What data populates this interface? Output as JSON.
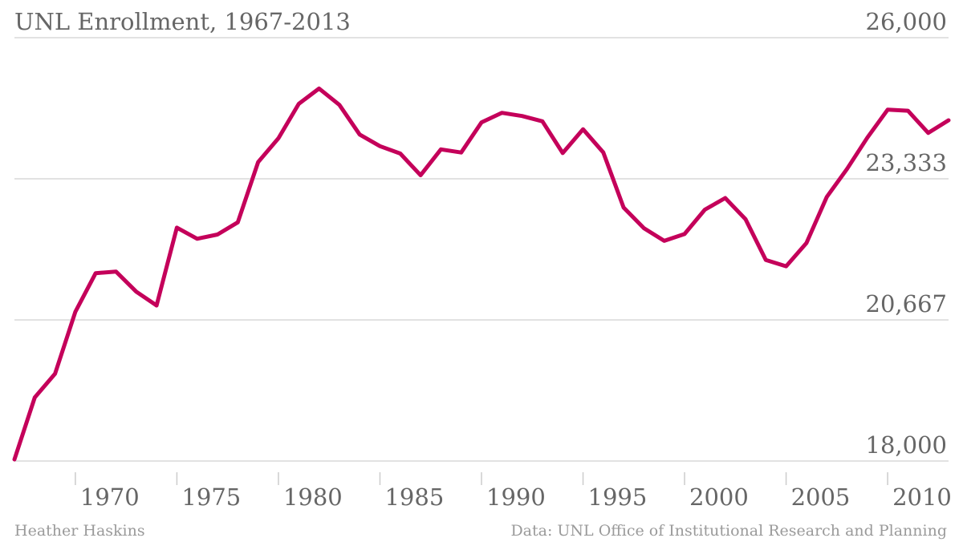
{
  "chart_data": {
    "type": "line",
    "title": "UNL Enrollment, 1967-2013",
    "xlabel": "",
    "ylabel": "",
    "xlim": [
      1967,
      2013
    ],
    "ylim": [
      18000,
      26000
    ],
    "y_ticks": [
      {
        "value": 18000,
        "label": "18,000"
      },
      {
        "value": 20667,
        "label": "20,667"
      },
      {
        "value": 23333,
        "label": "23,333"
      },
      {
        "value": 26000,
        "label": "26,000"
      }
    ],
    "x_ticks": [
      {
        "value": 1970,
        "label": "1970"
      },
      {
        "value": 1975,
        "label": "1975"
      },
      {
        "value": 1980,
        "label": "1980"
      },
      {
        "value": 1985,
        "label": "1985"
      },
      {
        "value": 1990,
        "label": "1990"
      },
      {
        "value": 1995,
        "label": "1995"
      },
      {
        "value": 2000,
        "label": "2000"
      },
      {
        "value": 2005,
        "label": "2005"
      },
      {
        "value": 2010,
        "label": "2010"
      }
    ],
    "grid": "horizontal",
    "y_axis_position": "right",
    "series": [
      {
        "color": "#c4005a",
        "x": [
          1967,
          1968,
          1969,
          1970,
          1971,
          1972,
          1973,
          1974,
          1975,
          1976,
          1977,
          1978,
          1979,
          1980,
          1981,
          1982,
          1983,
          1984,
          1985,
          1986,
          1987,
          1988,
          1989,
          1990,
          1991,
          1992,
          1993,
          1994,
          1995,
          1996,
          1997,
          1998,
          1999,
          2000,
          2001,
          2002,
          2003,
          2004,
          2005,
          2006,
          2007,
          2008,
          2009,
          2010,
          2011,
          2012,
          2013
        ],
        "values": [
          18030,
          19200,
          19650,
          20820,
          21550,
          21580,
          21200,
          20940,
          22410,
          22200,
          22280,
          22510,
          23650,
          24100,
          24750,
          25040,
          24730,
          24170,
          23950,
          23810,
          23400,
          23890,
          23830,
          24400,
          24580,
          24520,
          24420,
          23820,
          24270,
          23830,
          22790,
          22400,
          22160,
          22290,
          22750,
          22970,
          22570,
          21800,
          21680,
          22120,
          22990,
          23520,
          24110,
          24640,
          24620,
          24200,
          24440
        ]
      }
    ]
  },
  "footer": {
    "author": "Heather Haskins",
    "source": "Data: UNL Office of Institutional Research and Planning"
  }
}
